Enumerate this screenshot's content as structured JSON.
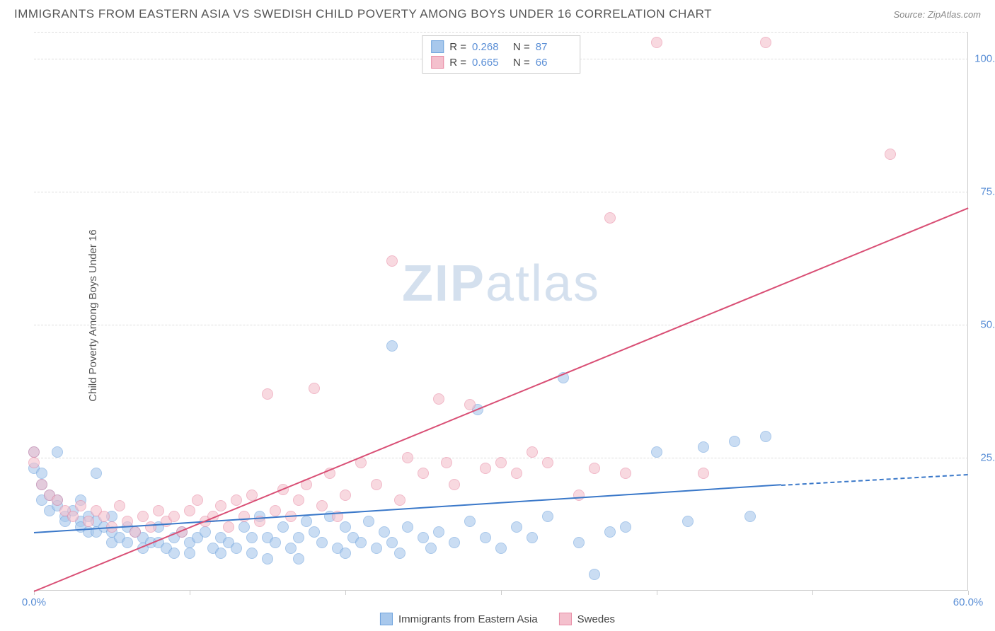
{
  "header": {
    "title": "IMMIGRANTS FROM EASTERN ASIA VS SWEDISH CHILD POVERTY AMONG BOYS UNDER 16 CORRELATION CHART",
    "source_label": "Source: ZipAtlas.com"
  },
  "watermark": {
    "zip": "ZIP",
    "atlas": "atlas"
  },
  "chart": {
    "type": "scatter",
    "y_axis_label": "Child Poverty Among Boys Under 16",
    "xlim": [
      0,
      60
    ],
    "ylim": [
      0,
      105
    ],
    "x_ticks": [
      0,
      10,
      20,
      30,
      40,
      50,
      60
    ],
    "x_tick_labels": [
      "0.0%",
      "",
      "",
      "",
      "",
      "",
      "60.0%"
    ],
    "y_ticks": [
      25,
      50,
      75,
      100
    ],
    "y_tick_labels": [
      "25.0%",
      "50.0%",
      "75.0%",
      "100.0%"
    ],
    "grid_color": "#dddddd",
    "axis_color": "#cccccc",
    "tick_label_color": "#5b8fd6",
    "label_fontsize": 15,
    "background_color": "#ffffff",
    "series": [
      {
        "name": "Immigrants from Eastern Asia",
        "fill_color": "#a8c8ec",
        "stroke_color": "#6fa3dd",
        "fill_opacity": 0.6,
        "marker_radius": 8,
        "trend": {
          "color": "#3a78c9",
          "width": 2,
          "x1": 0,
          "y1": 11,
          "x2": 48,
          "y2": 20,
          "dash_after_x": 48,
          "x3": 60,
          "y3": 22
        },
        "stats": {
          "R": "0.268",
          "N": "87"
        },
        "points": [
          [
            0,
            26
          ],
          [
            0,
            23
          ],
          [
            0.5,
            22
          ],
          [
            0.5,
            20
          ],
          [
            0.5,
            17
          ],
          [
            1,
            18
          ],
          [
            1,
            15
          ],
          [
            1.5,
            26
          ],
          [
            1.5,
            17
          ],
          [
            1.5,
            16
          ],
          [
            2,
            14
          ],
          [
            2,
            13
          ],
          [
            2.5,
            15
          ],
          [
            3,
            17
          ],
          [
            3,
            13
          ],
          [
            3,
            12
          ],
          [
            3.5,
            14
          ],
          [
            3.5,
            11
          ],
          [
            4,
            22
          ],
          [
            4,
            13
          ],
          [
            4,
            11
          ],
          [
            4.5,
            12
          ],
          [
            5,
            14
          ],
          [
            5,
            11
          ],
          [
            5,
            9
          ],
          [
            5.5,
            10
          ],
          [
            6,
            12
          ],
          [
            6,
            9
          ],
          [
            6.5,
            11
          ],
          [
            7,
            10
          ],
          [
            7,
            8
          ],
          [
            7.5,
            9
          ],
          [
            8,
            12
          ],
          [
            8,
            9
          ],
          [
            8.5,
            8
          ],
          [
            9,
            10
          ],
          [
            9,
            7
          ],
          [
            9.5,
            11
          ],
          [
            10,
            9
          ],
          [
            10,
            7
          ],
          [
            10.5,
            10
          ],
          [
            11,
            11
          ],
          [
            11.5,
            8
          ],
          [
            12,
            10
          ],
          [
            12,
            7
          ],
          [
            12.5,
            9
          ],
          [
            13,
            8
          ],
          [
            13.5,
            12
          ],
          [
            14,
            10
          ],
          [
            14,
            7
          ],
          [
            14.5,
            14
          ],
          [
            15,
            10
          ],
          [
            15,
            6
          ],
          [
            15.5,
            9
          ],
          [
            16,
            12
          ],
          [
            16.5,
            8
          ],
          [
            17,
            10
          ],
          [
            17,
            6
          ],
          [
            17.5,
            13
          ],
          [
            18,
            11
          ],
          [
            18.5,
            9
          ],
          [
            19,
            14
          ],
          [
            19.5,
            8
          ],
          [
            20,
            12
          ],
          [
            20,
            7
          ],
          [
            20.5,
            10
          ],
          [
            21,
            9
          ],
          [
            21.5,
            13
          ],
          [
            22,
            8
          ],
          [
            22.5,
            11
          ],
          [
            23,
            46
          ],
          [
            23,
            9
          ],
          [
            23.5,
            7
          ],
          [
            24,
            12
          ],
          [
            25,
            10
          ],
          [
            25.5,
            8
          ],
          [
            26,
            11
          ],
          [
            27,
            9
          ],
          [
            28,
            13
          ],
          [
            28.5,
            34
          ],
          [
            29,
            10
          ],
          [
            30,
            8
          ],
          [
            31,
            12
          ],
          [
            32,
            10
          ],
          [
            33,
            14
          ],
          [
            34,
            40
          ],
          [
            35,
            9
          ],
          [
            36,
            3
          ],
          [
            37,
            11
          ],
          [
            38,
            12
          ],
          [
            40,
            26
          ],
          [
            42,
            13
          ],
          [
            43,
            27
          ],
          [
            45,
            28
          ],
          [
            46,
            14
          ],
          [
            47,
            29
          ]
        ]
      },
      {
        "name": "Swedes",
        "fill_color": "#f4c0cd",
        "stroke_color": "#e88ba5",
        "fill_opacity": 0.6,
        "marker_radius": 8,
        "trend": {
          "color": "#d94f75",
          "width": 2,
          "x1": 0,
          "y1": 0,
          "x2": 60,
          "y2": 72
        },
        "stats": {
          "R": "0.665",
          "N": "66"
        },
        "points": [
          [
            0,
            26
          ],
          [
            0,
            24
          ],
          [
            0.5,
            20
          ],
          [
            1,
            18
          ],
          [
            1.5,
            17
          ],
          [
            2,
            15
          ],
          [
            2.5,
            14
          ],
          [
            3,
            16
          ],
          [
            3.5,
            13
          ],
          [
            4,
            15
          ],
          [
            4.5,
            14
          ],
          [
            5,
            12
          ],
          [
            5.5,
            16
          ],
          [
            6,
            13
          ],
          [
            6.5,
            11
          ],
          [
            7,
            14
          ],
          [
            7.5,
            12
          ],
          [
            8,
            15
          ],
          [
            8.5,
            13
          ],
          [
            9,
            14
          ],
          [
            9.5,
            11
          ],
          [
            10,
            15
          ],
          [
            10.5,
            17
          ],
          [
            11,
            13
          ],
          [
            11.5,
            14
          ],
          [
            12,
            16
          ],
          [
            12.5,
            12
          ],
          [
            13,
            17
          ],
          [
            13.5,
            14
          ],
          [
            14,
            18
          ],
          [
            14.5,
            13
          ],
          [
            15,
            37
          ],
          [
            15.5,
            15
          ],
          [
            16,
            19
          ],
          [
            16.5,
            14
          ],
          [
            17,
            17
          ],
          [
            17.5,
            20
          ],
          [
            18,
            38
          ],
          [
            18.5,
            16
          ],
          [
            19,
            22
          ],
          [
            19.5,
            14
          ],
          [
            20,
            18
          ],
          [
            21,
            24
          ],
          [
            22,
            20
          ],
          [
            23,
            62
          ],
          [
            23.5,
            17
          ],
          [
            24,
            25
          ],
          [
            25,
            22
          ],
          [
            26,
            36
          ],
          [
            26.5,
            24
          ],
          [
            27,
            20
          ],
          [
            28,
            35
          ],
          [
            29,
            23
          ],
          [
            30,
            24
          ],
          [
            31,
            22
          ],
          [
            32,
            26
          ],
          [
            33,
            24
          ],
          [
            34,
            103
          ],
          [
            35,
            18
          ],
          [
            36,
            23
          ],
          [
            37,
            70
          ],
          [
            38,
            22
          ],
          [
            40,
            103
          ],
          [
            43,
            22
          ],
          [
            47,
            103
          ],
          [
            55,
            82
          ]
        ]
      }
    ]
  },
  "stats_legend": {
    "R_label": "R =",
    "N_label": "N ="
  },
  "bottom_legend": {
    "items": [
      "Immigrants from Eastern Asia",
      "Swedes"
    ]
  }
}
